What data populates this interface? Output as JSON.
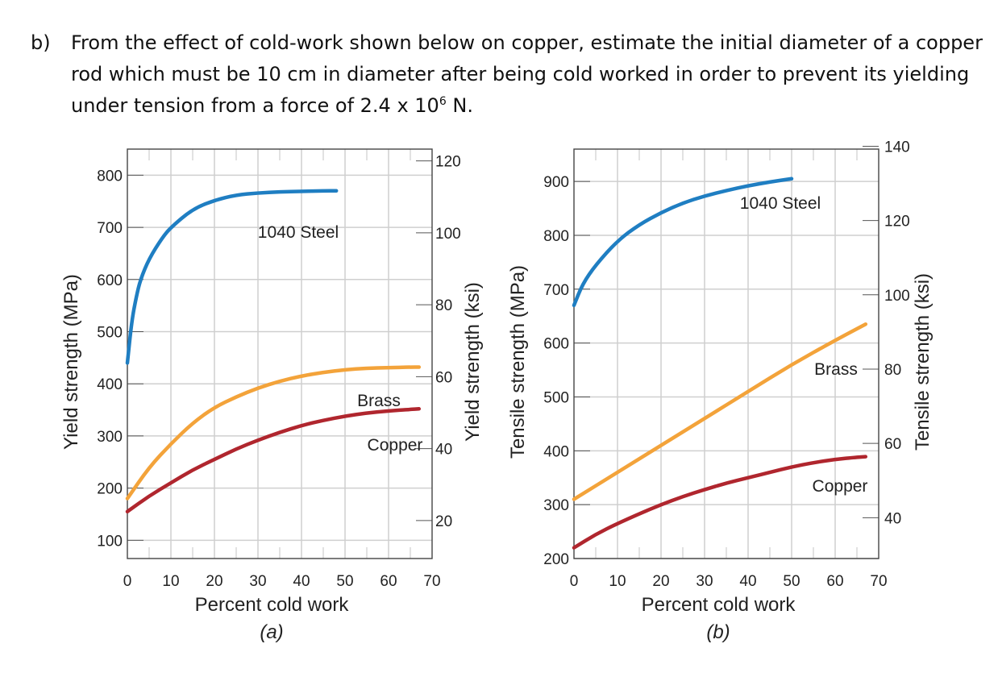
{
  "question": {
    "label": "b)",
    "line1": "From the effect of cold-work shown below on copper, estimate the initial diameter of a copper",
    "line2": "rod which must be 10 cm in diameter after being cold worked in order to prevent its yielding",
    "line3_prefix": "under tension from a force of 2.4 x 10",
    "line3_exp": "6",
    "line3_suffix": " N."
  },
  "colors": {
    "steel": "#1f7ec2",
    "brass": "#f3a33a",
    "copper": "#b0262e",
    "grid": "#cfcfcf",
    "axis": "#555555"
  },
  "chart_data": [
    {
      "type": "line",
      "panel_label": "(a)",
      "xlabel": "Percent cold work",
      "ylabel": "Yield strength (MPa)",
      "ylabel_right": "Yield strength (ksi)",
      "xlim": [
        0,
        70
      ],
      "ylim": [
        65,
        850
      ],
      "x_ticks": [
        0,
        10,
        20,
        30,
        40,
        50,
        60,
        70
      ],
      "y_ticks": [
        100,
        200,
        300,
        400,
        500,
        600,
        700,
        800
      ],
      "y_ticks_right_ksi": [
        20,
        40,
        60,
        80,
        100,
        120
      ],
      "grid": true,
      "series": [
        {
          "name": "1040 Steel",
          "color_key": "steel",
          "x": [
            0,
            1,
            2,
            3,
            5,
            8,
            10,
            15,
            20,
            25,
            30,
            35,
            40,
            45,
            48
          ],
          "y": [
            440,
            520,
            565,
            600,
            640,
            680,
            700,
            735,
            752,
            762,
            766,
            768,
            769,
            770,
            770
          ]
        },
        {
          "name": "Brass",
          "color_key": "brass",
          "x": [
            0,
            5,
            10,
            15,
            20,
            25,
            30,
            35,
            40,
            45,
            50,
            55,
            60,
            65,
            67
          ],
          "y": [
            180,
            240,
            285,
            325,
            355,
            375,
            392,
            405,
            415,
            422,
            427,
            430,
            431,
            432,
            432
          ]
        },
        {
          "name": "Copper",
          "color_key": "copper",
          "x": [
            0,
            5,
            10,
            15,
            20,
            25,
            30,
            35,
            40,
            45,
            50,
            55,
            60,
            65,
            67
          ],
          "y": [
            155,
            185,
            210,
            235,
            255,
            275,
            292,
            307,
            320,
            330,
            338,
            344,
            348,
            351,
            352
          ]
        }
      ]
    },
    {
      "type": "line",
      "panel_label": "(b)",
      "xlabel": "Percent cold work",
      "ylabel": "Tensile strength (MPa)",
      "ylabel_right": "Tensile strength (ksi)",
      "xlim": [
        0,
        70
      ],
      "ylim": [
        200,
        960
      ],
      "x_ticks": [
        0,
        10,
        20,
        30,
        40,
        50,
        60,
        70
      ],
      "y_ticks": [
        200,
        300,
        400,
        500,
        600,
        700,
        800,
        900
      ],
      "y_ticks_right_ksi": [
        40,
        60,
        80,
        100,
        120,
        140
      ],
      "grid": true,
      "series": [
        {
          "name": "1040 Steel",
          "color_key": "steel",
          "x": [
            0,
            2,
            5,
            10,
            15,
            20,
            25,
            30,
            35,
            40,
            45,
            50
          ],
          "y": [
            670,
            710,
            745,
            790,
            820,
            842,
            860,
            873,
            883,
            892,
            899,
            905
          ]
        },
        {
          "name": "Brass",
          "color_key": "brass",
          "x": [
            0,
            10,
            20,
            30,
            40,
            50,
            60,
            67
          ],
          "y": [
            310,
            360,
            410,
            460,
            510,
            560,
            605,
            635
          ]
        },
        {
          "name": "Copper",
          "color_key": "copper",
          "x": [
            0,
            5,
            10,
            15,
            20,
            25,
            30,
            35,
            40,
            45,
            50,
            55,
            60,
            65,
            67
          ],
          "y": [
            220,
            245,
            265,
            283,
            300,
            315,
            328,
            340,
            350,
            360,
            370,
            378,
            384,
            388,
            389
          ]
        }
      ]
    }
  ]
}
